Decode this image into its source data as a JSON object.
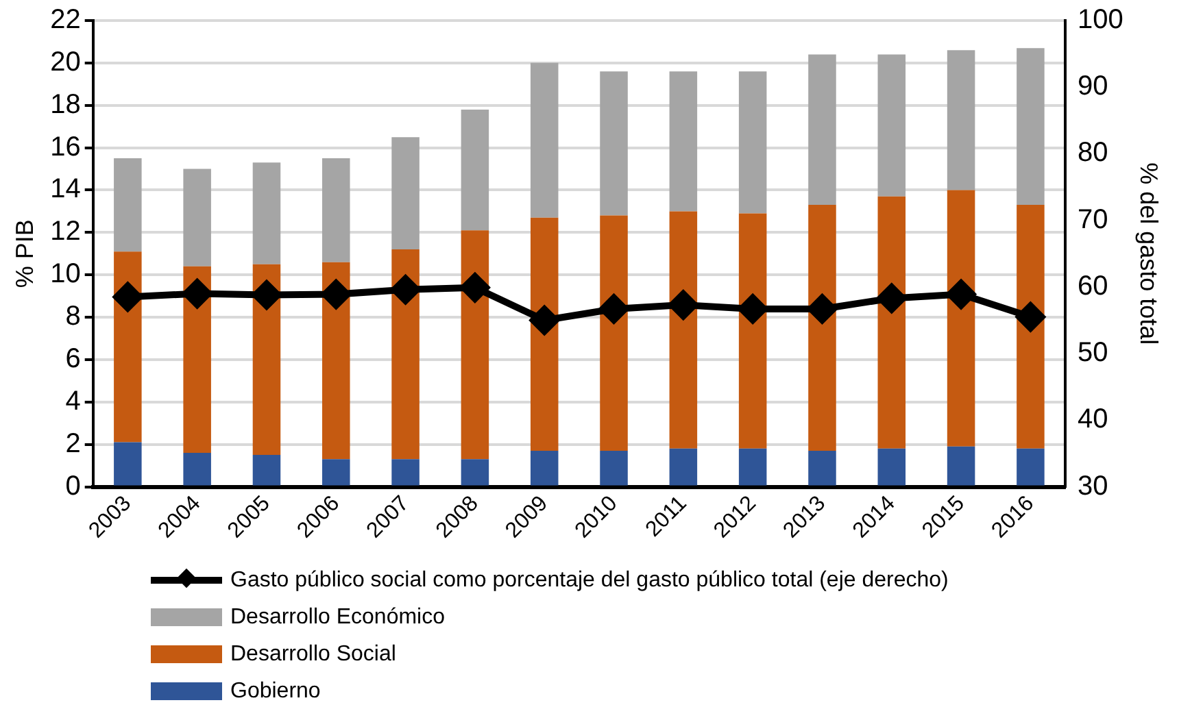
{
  "chart_data": {
    "type": "bar",
    "stacked": true,
    "categories": [
      "2003",
      "2004",
      "2005",
      "2006",
      "2007",
      "2008",
      "2009",
      "2010",
      "2011",
      "2012",
      "2013",
      "2014",
      "2015",
      "2016"
    ],
    "series": [
      {
        "name": "Gobierno",
        "color": "#2f5597",
        "values": [
          2.1,
          1.6,
          1.5,
          1.3,
          1.3,
          1.3,
          1.7,
          1.7,
          1.8,
          1.8,
          1.7,
          1.8,
          1.9,
          1.8
        ]
      },
      {
        "name": "Desarrollo Social",
        "color": "#c55a11",
        "values": [
          9.0,
          8.8,
          9.0,
          9.3,
          9.9,
          10.8,
          11.0,
          11.1,
          11.2,
          11.1,
          11.6,
          11.9,
          12.1,
          11.5
        ]
      },
      {
        "name": "Desarrollo Económico",
        "color": "#a5a5a5",
        "values": [
          4.4,
          4.6,
          4.8,
          4.9,
          5.3,
          5.7,
          7.3,
          6.8,
          6.6,
          6.7,
          7.1,
          6.7,
          6.6,
          7.4
        ]
      },
      {
        "name": "Gasto público social como porcentaje del gasto público total (eje derecho)",
        "type": "line",
        "axis": "y2",
        "color": "#000000",
        "values": [
          58.5,
          59.0,
          58.8,
          58.9,
          59.6,
          59.9,
          55.0,
          56.7,
          57.3,
          56.7,
          56.7,
          58.3,
          58.9,
          55.5
        ]
      }
    ],
    "ylabel": "% PIB",
    "y2label": "% del gasto total",
    "ylim": [
      0,
      22
    ],
    "yticks": [
      0,
      2,
      4,
      6,
      8,
      10,
      12,
      14,
      16,
      18,
      20,
      22
    ],
    "y2lim": [
      30,
      100
    ],
    "y2ticks": [
      30,
      40,
      50,
      60,
      70,
      80,
      90,
      100
    ],
    "grid": "y",
    "legend": "bottom",
    "marker": "diamond",
    "line_style": "solid"
  }
}
